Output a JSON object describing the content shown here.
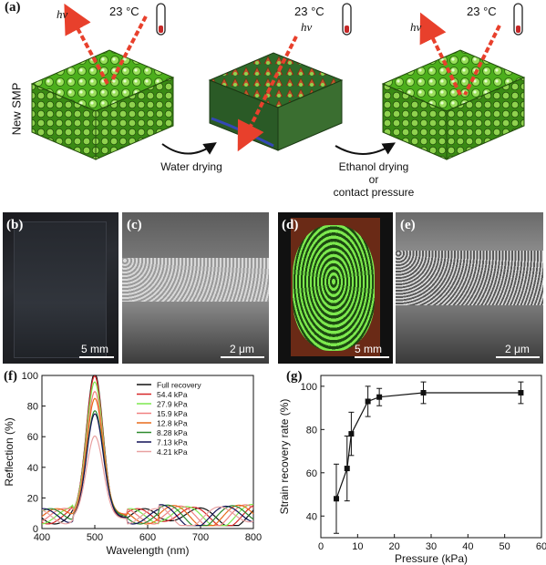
{
  "panel_a": {
    "label": "(a)",
    "side_label": "New SMP",
    "temperatures": [
      "23 °C",
      "23 °C",
      "23 °C"
    ],
    "hv": "hν",
    "step1_label": "Water drying",
    "step2_line1": "Ethanol drying",
    "step2_line2": "or",
    "step2_line3": "contact pressure"
  },
  "panel_b": {
    "label": "(b)",
    "scale": "5 mm"
  },
  "panel_c": {
    "label": "(c)",
    "scale": "2 μm"
  },
  "panel_d": {
    "label": "(d)",
    "scale": "5 mm"
  },
  "panel_e": {
    "label": "(e)",
    "scale": "2 μm"
  },
  "panel_f": {
    "label": "(f)"
  },
  "panel_g": {
    "label": "(g)"
  },
  "colors": {
    "spectrum_accent": "#7ce84d",
    "dashed_arrow": "#e8402c",
    "thermo_fill": "#c62828"
  },
  "chart_data": [
    {
      "type": "line",
      "panel": "(f)",
      "xlabel": "Wavelength (nm)",
      "ylabel": "Reflection (%)",
      "xlim": [
        400,
        800
      ],
      "ylim": [
        0,
        100
      ],
      "xticks": [
        400,
        500,
        600,
        700,
        800
      ],
      "yticks": [
        0,
        20,
        40,
        60,
        80,
        100
      ],
      "peak_wavelength": 500,
      "series": [
        {
          "name": "Full recovery",
          "color": "#111111",
          "peak": 93
        },
        {
          "name": "54.4 kPa",
          "color": "#d62728",
          "peak": 92
        },
        {
          "name": "27.9 kPa",
          "color": "#7ce84d",
          "peak": 89
        },
        {
          "name": "15.9 kPa",
          "color": "#f08080",
          "peak": 83
        },
        {
          "name": "12.8 kPa",
          "color": "#e86a1a",
          "peak": 78
        },
        {
          "name": "8.28 kPa",
          "color": "#2e8b2e",
          "peak": 69
        },
        {
          "name": "7.13 kPa",
          "color": "#111155",
          "peak": 66
        },
        {
          "name": "4.21 kPa",
          "color": "#e8a0a0",
          "peak": 51
        }
      ]
    },
    {
      "type": "scatter",
      "panel": "(g)",
      "xlabel": "Pressure (kPa)",
      "ylabel": "Strain recovery rate (%)",
      "xlim": [
        0,
        60
      ],
      "ylim": [
        30,
        105
      ],
      "xticks": [
        0,
        10,
        20,
        30,
        40,
        50,
        60
      ],
      "yticks": [
        40,
        60,
        80,
        100
      ],
      "x": [
        4.21,
        7.13,
        8.28,
        12.8,
        15.9,
        27.9,
        54.4
      ],
      "y": [
        48,
        62,
        78,
        93,
        95,
        97,
        97
      ],
      "err": [
        16,
        15,
        10,
        7,
        4,
        5,
        5
      ]
    }
  ]
}
